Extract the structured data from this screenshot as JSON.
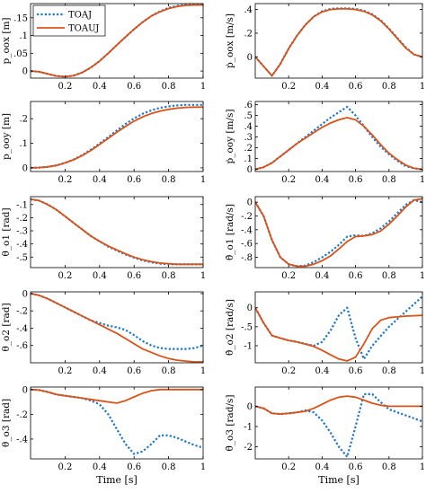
{
  "colors": {
    "toaj": "#1f77c4",
    "toauj": "#d95319"
  },
  "legend": {
    "items": [
      "TOAJ",
      "TOAUJ"
    ]
  },
  "chart_data": [
    {
      "type": "line",
      "ylabel": "p_oox [m]",
      "xlim": [
        0,
        1
      ],
      "ylim": [
        -0.02,
        0.19
      ],
      "yticks": [
        0,
        0.05,
        0.1,
        0.15
      ],
      "x": [
        0,
        0.05,
        0.1,
        0.15,
        0.2,
        0.25,
        0.3,
        0.35,
        0.4,
        0.45,
        0.5,
        0.55,
        0.6,
        0.65,
        0.7,
        0.75,
        0.8,
        0.85,
        0.9,
        0.95,
        1.0
      ],
      "series": [
        {
          "name": "TOAJ",
          "values": [
            0.0,
            -0.002,
            -0.008,
            -0.014,
            -0.016,
            -0.013,
            -0.004,
            0.01,
            0.028,
            0.05,
            0.073,
            0.096,
            0.118,
            0.138,
            0.155,
            0.168,
            0.178,
            0.184,
            0.187,
            0.188,
            0.188
          ]
        },
        {
          "name": "TOAUJ",
          "values": [
            0.0,
            -0.002,
            -0.008,
            -0.014,
            -0.016,
            -0.013,
            -0.004,
            0.01,
            0.028,
            0.05,
            0.073,
            0.096,
            0.118,
            0.138,
            0.155,
            0.167,
            0.176,
            0.182,
            0.185,
            0.186,
            0.186
          ]
        }
      ]
    },
    {
      "type": "line",
      "ylabel": "ṗ_oox [m/s]",
      "xlim": [
        0,
        1
      ],
      "ylim": [
        -0.18,
        0.45
      ],
      "yticks": [
        0,
        0.2,
        0.4
      ],
      "x": [
        0,
        0.05,
        0.1,
        0.15,
        0.2,
        0.25,
        0.3,
        0.35,
        0.4,
        0.45,
        0.5,
        0.55,
        0.6,
        0.65,
        0.7,
        0.75,
        0.8,
        0.85,
        0.9,
        0.95,
        1.0
      ],
      "series": [
        {
          "name": "TOAJ",
          "values": [
            0.0,
            -0.08,
            -0.16,
            -0.06,
            0.07,
            0.18,
            0.27,
            0.34,
            0.385,
            0.405,
            0.41,
            0.41,
            0.405,
            0.39,
            0.36,
            0.31,
            0.24,
            0.16,
            0.08,
            0.02,
            0.0
          ]
        },
        {
          "name": "TOAUJ",
          "values": [
            0.0,
            -0.08,
            -0.16,
            -0.06,
            0.07,
            0.18,
            0.27,
            0.34,
            0.38,
            0.4,
            0.405,
            0.405,
            0.4,
            0.385,
            0.355,
            0.305,
            0.235,
            0.155,
            0.075,
            0.02,
            0.0
          ]
        }
      ]
    },
    {
      "type": "line",
      "ylabel": "p_ooy [m]",
      "xlim": [
        0,
        1
      ],
      "ylim": [
        -0.015,
        0.27
      ],
      "yticks": [
        0,
        0.1,
        0.2
      ],
      "x": [
        0,
        0.05,
        0.1,
        0.15,
        0.2,
        0.25,
        0.3,
        0.35,
        0.4,
        0.45,
        0.5,
        0.55,
        0.6,
        0.65,
        0.7,
        0.75,
        0.8,
        0.85,
        0.9,
        0.95,
        1.0
      ],
      "series": [
        {
          "name": "TOAJ",
          "values": [
            0.0,
            0.001,
            0.004,
            0.01,
            0.02,
            0.034,
            0.052,
            0.074,
            0.099,
            0.125,
            0.152,
            0.178,
            0.201,
            0.22,
            0.234,
            0.244,
            0.25,
            0.254,
            0.256,
            0.256,
            0.256
          ]
        },
        {
          "name": "TOAUJ",
          "values": [
            0.0,
            0.001,
            0.004,
            0.01,
            0.02,
            0.033,
            0.05,
            0.071,
            0.095,
            0.12,
            0.145,
            0.168,
            0.19,
            0.207,
            0.221,
            0.231,
            0.238,
            0.243,
            0.246,
            0.247,
            0.247
          ]
        }
      ]
    },
    {
      "type": "line",
      "ylabel": "ṗ_ooy [m/s]",
      "xlim": [
        0,
        1
      ],
      "ylim": [
        -0.02,
        0.63
      ],
      "yticks": [
        0,
        0.1,
        0.2,
        0.3,
        0.4,
        0.5,
        0.6
      ],
      "x": [
        0,
        0.05,
        0.1,
        0.15,
        0.2,
        0.25,
        0.3,
        0.35,
        0.4,
        0.45,
        0.5,
        0.55,
        0.6,
        0.65,
        0.7,
        0.75,
        0.8,
        0.85,
        0.9,
        0.95,
        1.0
      ],
      "series": [
        {
          "name": "TOAJ",
          "values": [
            0.0,
            0.02,
            0.06,
            0.12,
            0.18,
            0.24,
            0.3,
            0.36,
            0.42,
            0.48,
            0.53,
            0.58,
            0.5,
            0.4,
            0.3,
            0.21,
            0.14,
            0.08,
            0.03,
            0.01,
            0.0
          ]
        },
        {
          "name": "TOAUJ",
          "values": [
            0.0,
            0.02,
            0.06,
            0.12,
            0.18,
            0.24,
            0.29,
            0.34,
            0.39,
            0.43,
            0.46,
            0.48,
            0.46,
            0.4,
            0.32,
            0.23,
            0.15,
            0.09,
            0.04,
            0.01,
            0.0
          ]
        }
      ]
    },
    {
      "type": "line",
      "ylabel": "θ_o1 [rad]",
      "xlim": [
        0,
        1
      ],
      "ylim": [
        -0.58,
        -0.04
      ],
      "yticks": [
        -0.1,
        -0.2,
        -0.3,
        -0.4,
        -0.5
      ],
      "x": [
        0,
        0.05,
        0.1,
        0.15,
        0.2,
        0.25,
        0.3,
        0.35,
        0.4,
        0.45,
        0.5,
        0.55,
        0.6,
        0.65,
        0.7,
        0.75,
        0.8,
        0.85,
        0.9,
        0.95,
        1.0
      ],
      "series": [
        {
          "name": "TOAJ",
          "values": [
            -0.06,
            -0.07,
            -0.1,
            -0.14,
            -0.19,
            -0.24,
            -0.29,
            -0.34,
            -0.38,
            -0.42,
            -0.45,
            -0.48,
            -0.505,
            -0.525,
            -0.54,
            -0.55,
            -0.555,
            -0.555,
            -0.555,
            -0.555,
            -0.555
          ]
        },
        {
          "name": "TOAUJ",
          "values": [
            -0.06,
            -0.07,
            -0.1,
            -0.14,
            -0.19,
            -0.24,
            -0.29,
            -0.34,
            -0.38,
            -0.415,
            -0.445,
            -0.475,
            -0.5,
            -0.52,
            -0.535,
            -0.545,
            -0.55,
            -0.555,
            -0.555,
            -0.555,
            -0.555
          ]
        }
      ]
    },
    {
      "type": "line",
      "ylabel": "θ̇_o1 [rad/s]",
      "xlim": [
        0,
        1
      ],
      "ylim": [
        -0.95,
        0.08
      ],
      "yticks": [
        0,
        -0.2,
        -0.4,
        -0.6,
        -0.8
      ],
      "x": [
        0,
        0.05,
        0.1,
        0.15,
        0.2,
        0.25,
        0.3,
        0.35,
        0.4,
        0.45,
        0.5,
        0.55,
        0.6,
        0.65,
        0.7,
        0.75,
        0.8,
        0.85,
        0.9,
        0.95,
        1.0
      ],
      "series": [
        {
          "name": "TOAJ",
          "values": [
            0.0,
            -0.2,
            -0.55,
            -0.8,
            -0.9,
            -0.93,
            -0.92,
            -0.87,
            -0.8,
            -0.72,
            -0.62,
            -0.5,
            -0.48,
            -0.49,
            -0.45,
            -0.38,
            -0.28,
            -0.16,
            -0.04,
            0.03,
            0.0
          ]
        },
        {
          "name": "TOAUJ",
          "values": [
            0.0,
            -0.2,
            -0.55,
            -0.8,
            -0.9,
            -0.93,
            -0.93,
            -0.9,
            -0.85,
            -0.78,
            -0.68,
            -0.57,
            -0.5,
            -0.49,
            -0.47,
            -0.42,
            -0.32,
            -0.2,
            -0.07,
            0.03,
            0.05
          ]
        }
      ]
    },
    {
      "type": "line",
      "ylabel": "θ_o2 [rad]",
      "xlim": [
        0,
        1
      ],
      "ylim": [
        -0.8,
        0.02
      ],
      "yticks": [
        0,
        -0.2,
        -0.4,
        -0.6
      ],
      "x": [
        0,
        0.05,
        0.1,
        0.15,
        0.2,
        0.25,
        0.3,
        0.35,
        0.4,
        0.45,
        0.5,
        0.55,
        0.6,
        0.65,
        0.7,
        0.75,
        0.8,
        0.85,
        0.9,
        0.95,
        1.0
      ],
      "series": [
        {
          "name": "TOAJ",
          "values": [
            0.0,
            -0.02,
            -0.06,
            -0.11,
            -0.16,
            -0.21,
            -0.26,
            -0.31,
            -0.34,
            -0.37,
            -0.39,
            -0.42,
            -0.48,
            -0.55,
            -0.6,
            -0.63,
            -0.64,
            -0.64,
            -0.64,
            -0.63,
            -0.6
          ]
        },
        {
          "name": "TOAUJ",
          "values": [
            0.0,
            -0.02,
            -0.06,
            -0.11,
            -0.16,
            -0.21,
            -0.26,
            -0.31,
            -0.36,
            -0.41,
            -0.46,
            -0.52,
            -0.58,
            -0.64,
            -0.68,
            -0.72,
            -0.75,
            -0.77,
            -0.78,
            -0.79,
            -0.79
          ]
        }
      ]
    },
    {
      "type": "line",
      "ylabel": "θ̇_o2 [rad/s]",
      "xlim": [
        0,
        1
      ],
      "ylim": [
        -1.45,
        0.42
      ],
      "yticks": [
        0,
        -0.5,
        -1
      ],
      "x": [
        0,
        0.05,
        0.1,
        0.15,
        0.2,
        0.25,
        0.3,
        0.35,
        0.4,
        0.45,
        0.5,
        0.55,
        0.6,
        0.65,
        0.7,
        0.75,
        0.8,
        0.85,
        0.9,
        0.95,
        1.0
      ],
      "series": [
        {
          "name": "TOAJ",
          "values": [
            0.0,
            -0.4,
            -0.73,
            -0.8,
            -0.86,
            -0.9,
            -0.95,
            -1.0,
            -0.9,
            -0.6,
            -0.2,
            0.0,
            -0.8,
            -1.35,
            -1.0,
            -0.75,
            -0.5,
            -0.3,
            -0.1,
            0.1,
            0.3
          ]
        },
        {
          "name": "TOAUJ",
          "values": [
            0.0,
            -0.4,
            -0.73,
            -0.8,
            -0.86,
            -0.9,
            -0.96,
            -1.02,
            -1.12,
            -1.24,
            -1.35,
            -1.4,
            -1.3,
            -0.95,
            -0.55,
            -0.33,
            -0.26,
            -0.24,
            -0.22,
            -0.21,
            -0.2
          ]
        }
      ]
    },
    {
      "type": "line",
      "ylabel": "θ_o3 [rad]",
      "xlim": [
        0,
        1
      ],
      "ylim": [
        -0.56,
        0.02
      ],
      "yticks": [
        0,
        -0.2,
        -0.4
      ],
      "x": [
        0,
        0.05,
        0.1,
        0.15,
        0.2,
        0.25,
        0.3,
        0.35,
        0.4,
        0.45,
        0.5,
        0.55,
        0.6,
        0.65,
        0.7,
        0.75,
        0.8,
        0.85,
        0.9,
        0.95,
        1.0
      ],
      "series": [
        {
          "name": "TOAJ",
          "values": [
            0.0,
            -0.005,
            -0.02,
            -0.04,
            -0.05,
            -0.06,
            -0.07,
            -0.09,
            -0.12,
            -0.2,
            -0.32,
            -0.44,
            -0.52,
            -0.5,
            -0.44,
            -0.37,
            -0.37,
            -0.39,
            -0.42,
            -0.45,
            -0.47
          ]
        },
        {
          "name": "TOAUJ",
          "values": [
            0.0,
            -0.005,
            -0.02,
            -0.04,
            -0.05,
            -0.06,
            -0.07,
            -0.08,
            -0.09,
            -0.1,
            -0.11,
            -0.09,
            -0.06,
            -0.03,
            -0.01,
            0.0,
            0.0,
            0.0,
            0.0,
            0.0,
            0.0
          ]
        }
      ]
    },
    {
      "type": "line",
      "ylabel": "θ̇_o3 [rad/s]",
      "xlim": [
        0,
        1
      ],
      "ylim": [
        -2.6,
        0.95
      ],
      "yticks": [
        0,
        -1,
        -2
      ],
      "x": [
        0,
        0.05,
        0.1,
        0.15,
        0.2,
        0.25,
        0.3,
        0.35,
        0.4,
        0.45,
        0.5,
        0.55,
        0.6,
        0.65,
        0.7,
        0.75,
        0.8,
        0.85,
        0.9,
        0.95,
        1.0
      ],
      "series": [
        {
          "name": "TOAJ",
          "values": [
            0.0,
            -0.1,
            -0.35,
            -0.38,
            -0.35,
            -0.3,
            -0.2,
            -0.3,
            -0.7,
            -1.3,
            -2.0,
            -2.5,
            -1.0,
            0.6,
            0.6,
            0.2,
            -0.15,
            -0.3,
            -0.45,
            -0.6,
            -0.75
          ]
        },
        {
          "name": "TOAUJ",
          "values": [
            0.0,
            -0.1,
            -0.35,
            -0.38,
            -0.35,
            -0.3,
            -0.25,
            -0.1,
            0.1,
            0.3,
            0.45,
            0.5,
            0.45,
            0.3,
            0.15,
            0.05,
            0.0,
            0.0,
            0.0,
            0.0,
            0.0
          ]
        }
      ]
    }
  ],
  "xaxis": {
    "label": "Time [s]",
    "ticks": [
      "0.2",
      "0.4",
      "0.6",
      "0.8",
      "1"
    ]
  }
}
